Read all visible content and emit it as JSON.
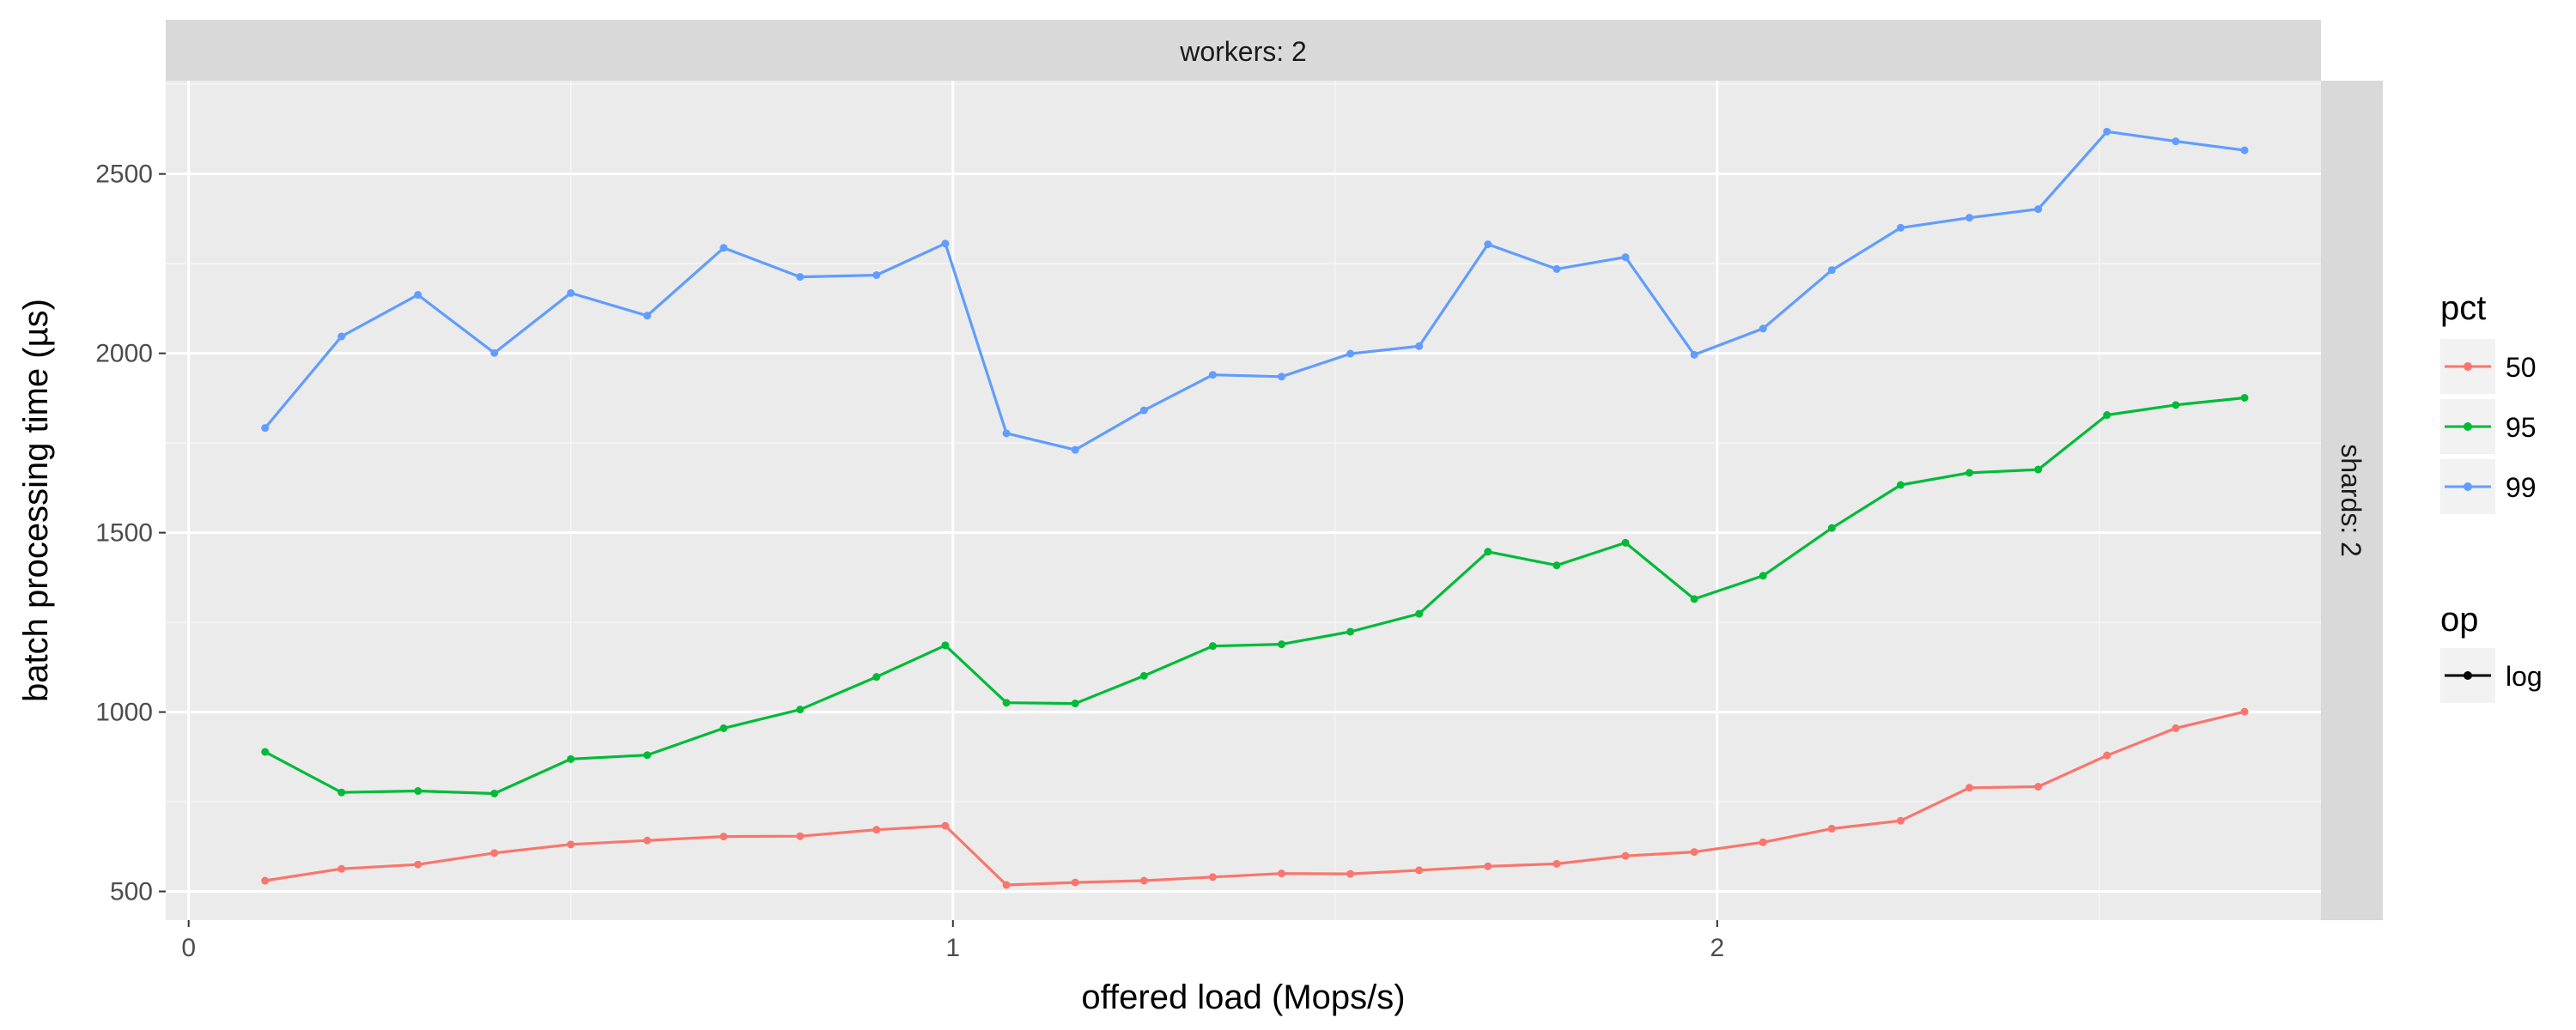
{
  "chart_data": {
    "type": "line",
    "facet": {
      "top_strip": "workers: 2",
      "right_strip": "shards: 2"
    },
    "xlabel": "offered load (Mops/s)",
    "ylabel": "batch processing time (µs)",
    "xlim": [
      -0.03,
      2.79
    ],
    "ylim": [
      420,
      2760
    ],
    "x_ticks": [
      0,
      1,
      2
    ],
    "x_tick_labels": [
      "0",
      "1",
      "2"
    ],
    "y_ticks": [
      500,
      1000,
      1500,
      2000,
      2500
    ],
    "y_tick_labels": [
      "500",
      "1000",
      "1500",
      "2000",
      "2500"
    ],
    "grid": true,
    "legend_position": "right",
    "legend": {
      "pct_title": "pct",
      "op_title": "op",
      "op_label": "log"
    },
    "x": [
      0.1,
      0.2,
      0.3,
      0.4,
      0.5,
      0.6,
      0.7,
      0.8,
      0.9,
      0.99,
      1.07,
      1.16,
      1.25,
      1.34,
      1.43,
      1.52,
      1.61,
      1.7,
      1.79,
      1.88,
      1.97,
      2.06,
      2.15,
      2.24,
      2.33,
      2.42,
      2.51,
      2.6,
      2.69
    ],
    "series": [
      {
        "name": "50",
        "color": "#F8766D",
        "values": [
          530,
          563,
          575,
          607,
          631,
          642,
          653,
          654,
          672,
          683,
          518,
          525,
          530,
          540,
          550,
          549,
          559,
          570,
          577,
          599,
          610,
          637,
          675,
          697,
          789,
          792,
          879,
          955,
          1001
        ]
      },
      {
        "name": "95",
        "color": "#00BA38",
        "values": [
          889,
          776,
          780,
          773,
          869,
          880,
          955,
          1007,
          1098,
          1186,
          1026,
          1024,
          1101,
          1184,
          1189,
          1224,
          1274,
          1447,
          1409,
          1472,
          1315,
          1380,
          1513,
          1633,
          1667,
          1676,
          1828,
          1856,
          1876
        ]
      },
      {
        "name": "99",
        "color": "#619CFF",
        "values": [
          1792,
          2047,
          2163,
          2001,
          2168,
          2105,
          2294,
          2213,
          2218,
          2306,
          1777,
          1731,
          1841,
          1940,
          1935,
          1999,
          2020,
          2304,
          2235,
          2268,
          1996,
          2069,
          2232,
          2350,
          2378,
          2402,
          2618,
          2591,
          2566
        ]
      }
    ]
  }
}
